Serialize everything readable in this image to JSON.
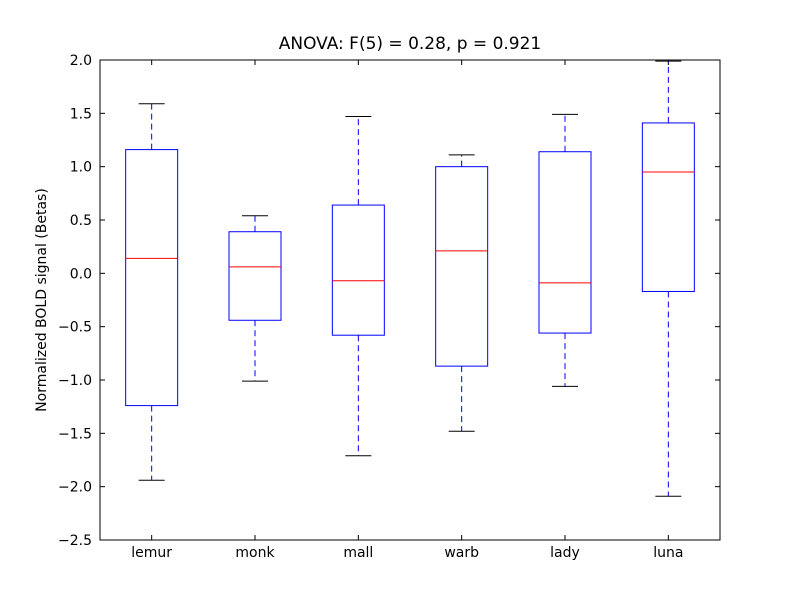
{
  "chart_data": {
    "type": "boxplot",
    "title": "ANOVA: F(5) = 0.28, p = 0.921",
    "xlabel": "",
    "ylabel": "Normalized BOLD signal (Betas)",
    "ylim": [
      -2.5,
      2.0
    ],
    "yticks": [
      "−2.5",
      "−2.0",
      "−1.5",
      "−1.0",
      "−0.5",
      "0.0",
      "0.5",
      "1.0",
      "1.5",
      "2.0"
    ],
    "ytick_values": [
      -2.5,
      -2.0,
      -1.5,
      -1.0,
      -0.5,
      0.0,
      0.5,
      1.0,
      1.5,
      2.0
    ],
    "grid": false,
    "categories": [
      "lemur",
      "monk",
      "mall",
      "warb",
      "lady",
      "luna"
    ],
    "boxes": [
      {
        "whisker_low": -1.94,
        "q1": -1.24,
        "median": 0.14,
        "q3": 1.16,
        "whisker_high": 1.59
      },
      {
        "whisker_low": -1.01,
        "q1": -0.44,
        "median": 0.06,
        "q3": 0.39,
        "whisker_high": 0.54
      },
      {
        "whisker_low": -1.71,
        "q1": -0.58,
        "median": -0.07,
        "q3": 0.64,
        "whisker_high": 1.47
      },
      {
        "whisker_low": -1.48,
        "q1": -0.87,
        "median": 0.21,
        "q3": 1.0,
        "whisker_high": 1.11
      },
      {
        "whisker_low": -1.06,
        "q1": -0.56,
        "median": -0.09,
        "q3": 1.14,
        "whisker_high": 1.49
      },
      {
        "whisker_low": -2.09,
        "q1": -0.17,
        "median": 0.95,
        "q3": 1.41,
        "whisker_high": 1.99
      }
    ],
    "colors": {
      "box": "#0000ff",
      "median": "#ff0000",
      "cap": "#000000"
    }
  }
}
